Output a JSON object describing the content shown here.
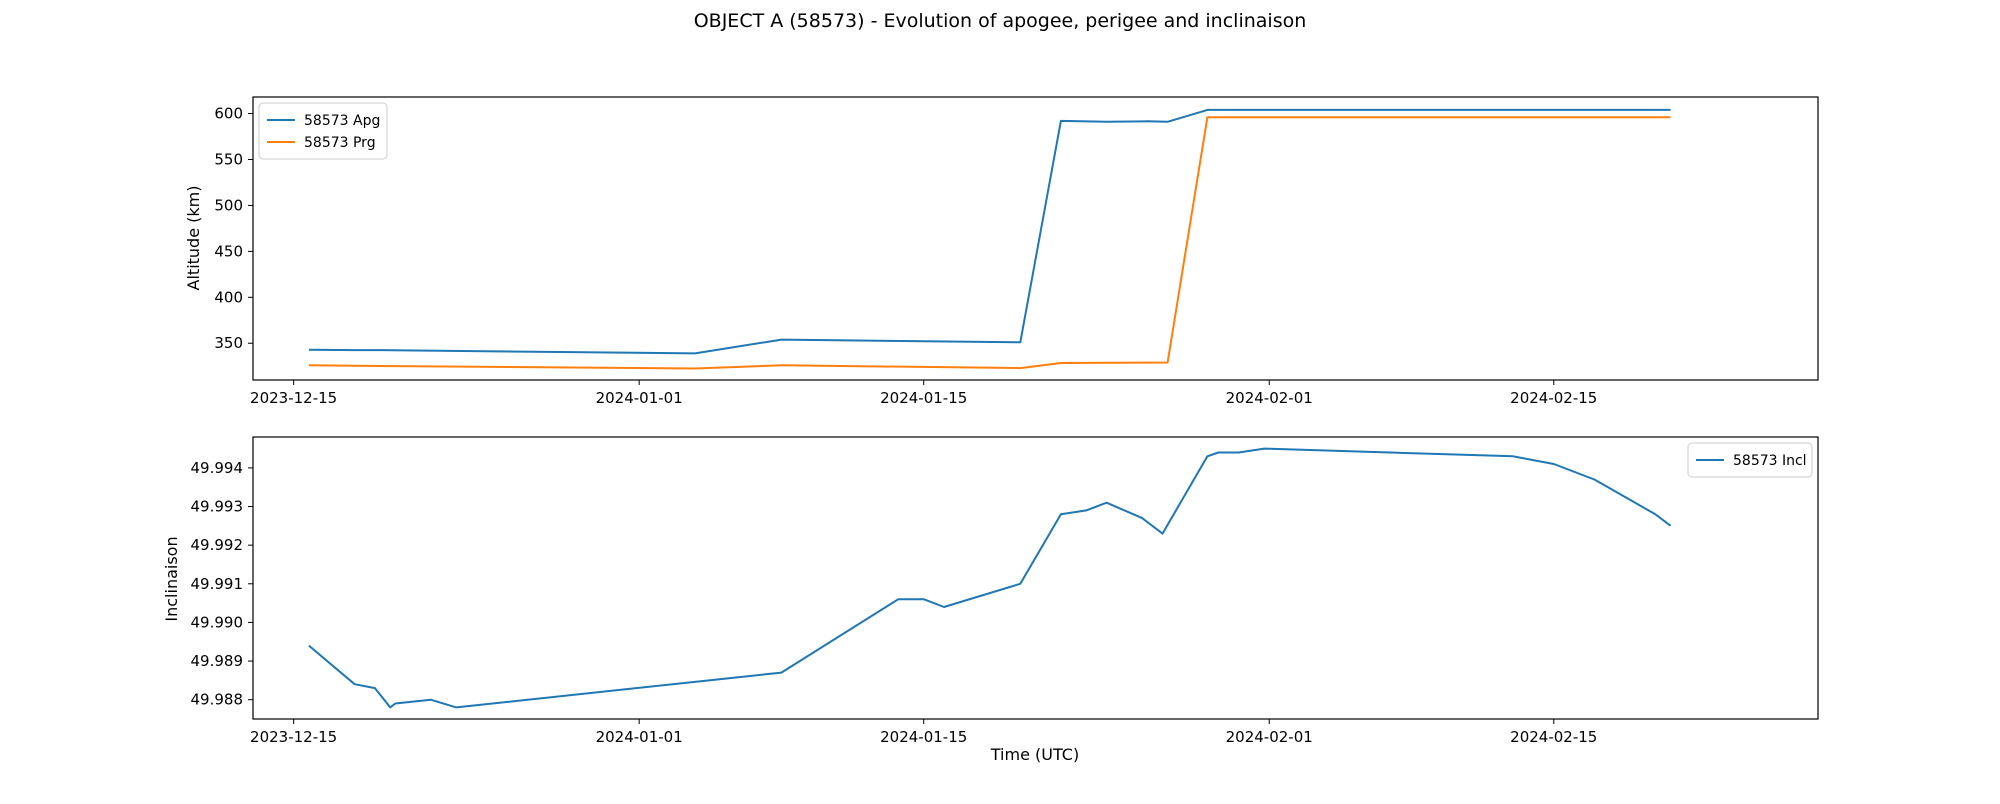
{
  "figure": {
    "title": "OBJECT A (58573) - Evolution of apogee, perigee and inclinaison"
  },
  "chart_data": [
    {
      "type": "line",
      "title": "",
      "xlabel": "",
      "ylabel": "Altitude (km)",
      "x_type": "date",
      "xlim": [
        "2023-12-13",
        "2024-02-28"
      ],
      "ylim": [
        310,
        618
      ],
      "xticks": [
        "2023-12-15",
        "2024-01-01",
        "2024-01-15",
        "2024-02-01",
        "2024-02-15"
      ],
      "yticks": [
        350,
        400,
        450,
        500,
        550,
        600
      ],
      "legend_position": "upper left",
      "grid": false,
      "series": [
        {
          "name": "58573 Apg",
          "color": "#1f77b4",
          "x": [
            "2023-12-15 18:00",
            "2023-12-18 00:00",
            "2023-12-19 00:00",
            "2024-01-03 18:00",
            "2024-01-08 00:00",
            "2024-01-19 18:00",
            "2024-01-21 18:00",
            "2024-01-24 00:00",
            "2024-01-26 00:00",
            "2024-01-27 00:00",
            "2024-01-28 23:00",
            "2024-02-01 00:00",
            "2024-02-20 18:00"
          ],
          "values": [
            343,
            342.5,
            342.5,
            339,
            354,
            351,
            592,
            591,
            591.5,
            591,
            604,
            604,
            604
          ]
        },
        {
          "name": "58573 Prg",
          "color": "#ff7f0e",
          "x": [
            "2023-12-15 18:00",
            "2023-12-18 00:00",
            "2024-01-03 18:00",
            "2024-01-08 00:00",
            "2024-01-19 18:00",
            "2024-01-21 18:00",
            "2024-01-27 00:00",
            "2024-01-28 23:00",
            "2024-02-01 00:00",
            "2024-02-20 18:00"
          ],
          "values": [
            326,
            325.5,
            322.5,
            326,
            323,
            328.5,
            329,
            596,
            596,
            596
          ]
        }
      ]
    },
    {
      "type": "line",
      "title": "",
      "xlabel": "Time (UTC)",
      "ylabel": "Inclinaison",
      "x_type": "date",
      "xlim": [
        "2023-12-13",
        "2024-02-28"
      ],
      "ylim": [
        49.9875,
        49.9948
      ],
      "xticks": [
        "2023-12-15",
        "2024-01-01",
        "2024-01-15",
        "2024-02-01",
        "2024-02-15"
      ],
      "yticks": [
        49.988,
        49.989,
        49.99,
        49.991,
        49.992,
        49.993,
        49.994
      ],
      "ytick_labels": [
        "49.988",
        "49.989",
        "49.990",
        "49.991",
        "49.992",
        "49.993",
        "49.994"
      ],
      "legend_position": "upper right",
      "grid": false,
      "series": [
        {
          "name": "58573 Incl",
          "color": "#1f77b4",
          "x": [
            "2023-12-15 18:00",
            "2023-12-18 00:00",
            "2023-12-19 00:00",
            "2023-12-19 18:00",
            "2023-12-20 00:00",
            "2023-12-21 18:00",
            "2023-12-23 00:00",
            "2024-01-08 00:00",
            "2024-01-13 18:00",
            "2024-01-15 00:00",
            "2024-01-16 00:00",
            "2024-01-19 18:00",
            "2024-01-21 18:00",
            "2024-01-23 00:00",
            "2024-01-24 00:00",
            "2024-01-25 18:00",
            "2024-01-26 18:00",
            "2024-01-28 23:00",
            "2024-01-29 12:00",
            "2024-01-30 12:00",
            "2024-01-31 18:00",
            "2024-02-13 00:00",
            "2024-02-15 00:00",
            "2024-02-17 00:00",
            "2024-02-18 00:00",
            "2024-02-20 00:00",
            "2024-02-20 18:00"
          ],
          "values": [
            49.9894,
            49.9884,
            49.9883,
            49.9878,
            49.9879,
            49.988,
            49.9878,
            49.9887,
            49.9906,
            49.9906,
            49.9904,
            49.991,
            49.9928,
            49.9929,
            49.9931,
            49.9927,
            49.9923,
            49.9943,
            49.9944,
            49.9944,
            49.9945,
            49.9943,
            49.9941,
            49.9937,
            49.9934,
            49.9928,
            49.9925
          ]
        }
      ]
    }
  ]
}
